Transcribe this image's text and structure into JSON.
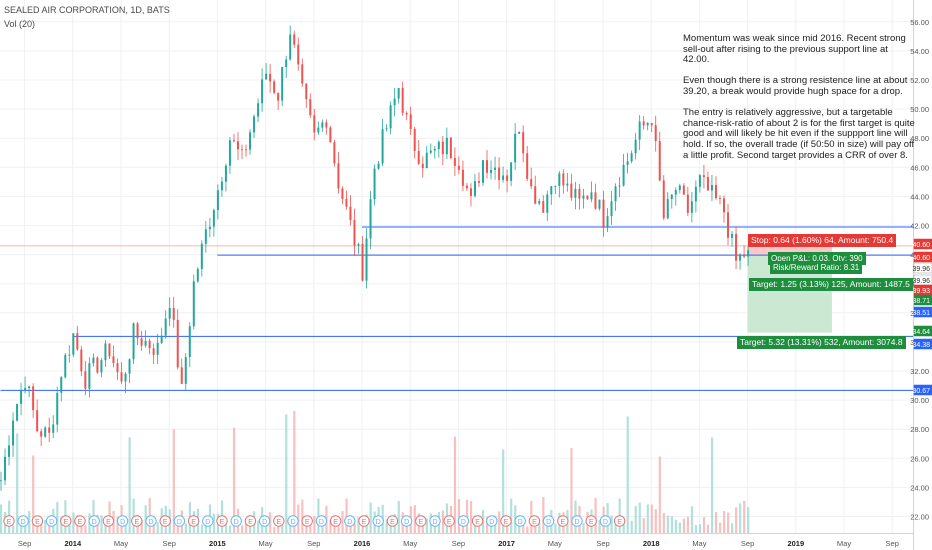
{
  "header": {
    "symbol_line": "SEALED AIR CORPORATION, 1D, BATS",
    "volume_line": "Vol (20)"
  },
  "note": {
    "paragraphs": [
      "Momentum was weak since mid 2016. Recent strong sell-out after rising to the previous support line at 42.00.",
      "Even though there is a strong resistence line at about 39.20, a break would provide hugh space for a drop.",
      "The entry is relatively aggressive, but a targetable chance-risk-ratio of about 2 is for the first target is quite good and will likely be hit even if the suppport line will hold. If so, the overall trade (if 50:50 in size) will pay off a little profit. Second target provides a CRR of over 8."
    ]
  },
  "position": {
    "stop_label": "Stop: 0.64 (1.60%) 64, Amount: 750.4",
    "pnl_label": "Open P&L: 0.03, Qty: 390",
    "rr_label": "Risk/Reward Ratio: 8.31",
    "target1_label": "Target: 1.25 (3.13%) 125, Amount: 1487.5",
    "target2_label": "Target: 5.32 (13.31%) 532, Amount: 3074.8"
  },
  "price_tags": [
    {
      "value": "40.60",
      "color": "#e53935"
    },
    {
      "value": "40.60",
      "color": "#e53935"
    },
    {
      "value": "39.96",
      "color": "#ffffff"
    },
    {
      "value": "39.96",
      "color": "#ffffff"
    },
    {
      "value": "39.93",
      "color": "#e53935"
    },
    {
      "value": "38.71",
      "color": "#1e8e3e"
    },
    {
      "value": "38.51",
      "color": "#2962ff"
    },
    {
      "value": "34.64",
      "color": "#1e8e3e"
    },
    {
      "value": "34.38",
      "color": "#2962ff"
    },
    {
      "value": "30.67",
      "color": "#2962ff"
    }
  ],
  "colors": {
    "up": "#26a69a",
    "down": "#ef5350",
    "support_line": "#2962ff",
    "stop_zone": "#f8c9c9",
    "target_zone": "#cbe9d2"
  },
  "chart_data": {
    "type": "candlestick",
    "y_axis": {
      "min": 21,
      "max": 57,
      "ticks": [
        "22.00",
        "24.00",
        "26.00",
        "28.00",
        "30.00",
        "32.00",
        "34.00",
        "36.00",
        "38.00",
        "40.00",
        "42.00",
        "44.00",
        "46.00",
        "48.00",
        "50.00",
        "52.00",
        "54.00",
        "56.00"
      ]
    },
    "x_axis": {
      "ticks": [
        "Sep",
        "2014",
        "May",
        "Sep",
        "2015",
        "May",
        "Sep",
        "2016",
        "May",
        "Sep",
        "2017",
        "May",
        "Sep",
        "2018",
        "May",
        "Sep",
        "2019",
        "May",
        "Sep"
      ]
    },
    "price_path": [
      {
        "date": "2013-07",
        "price": 24.5
      },
      {
        "date": "2013-08",
        "price": 29.0
      },
      {
        "date": "2013-09",
        "price": 31.5
      },
      {
        "date": "2013-10",
        "price": 28.0
      },
      {
        "date": "2013-11",
        "price": 27.5
      },
      {
        "date": "2013-12",
        "price": 32.0
      },
      {
        "date": "2014-01",
        "price": 34.5
      },
      {
        "date": "2014-02",
        "price": 31.5
      },
      {
        "date": "2014-04",
        "price": 33.5
      },
      {
        "date": "2014-05",
        "price": 31.0
      },
      {
        "date": "2014-06",
        "price": 34.5
      },
      {
        "date": "2014-08",
        "price": 33.5
      },
      {
        "date": "2014-09",
        "price": 37.0
      },
      {
        "date": "2014-10",
        "price": 30.5
      },
      {
        "date": "2014-11",
        "price": 38.0
      },
      {
        "date": "2014-12",
        "price": 41.5
      },
      {
        "date": "2015-01",
        "price": 44.5
      },
      {
        "date": "2015-02",
        "price": 48.0
      },
      {
        "date": "2015-03",
        "price": 46.5
      },
      {
        "date": "2015-04",
        "price": 49.5
      },
      {
        "date": "2015-05",
        "price": 52.5
      },
      {
        "date": "2015-06",
        "price": 51.0
      },
      {
        "date": "2015-07",
        "price": 55.5
      },
      {
        "date": "2015-08",
        "price": 51.0
      },
      {
        "date": "2015-09",
        "price": 48.0
      },
      {
        "date": "2015-10",
        "price": 49.5
      },
      {
        "date": "2015-11",
        "price": 45.0
      },
      {
        "date": "2016-01",
        "price": 39.0
      },
      {
        "date": "2016-02",
        "price": 46.0
      },
      {
        "date": "2016-04",
        "price": 51.5
      },
      {
        "date": "2016-05",
        "price": 48.0
      },
      {
        "date": "2016-06",
        "price": 46.5
      },
      {
        "date": "2016-08",
        "price": 47.5
      },
      {
        "date": "2016-09",
        "price": 46.5
      },
      {
        "date": "2016-10",
        "price": 43.5
      },
      {
        "date": "2016-11",
        "price": 46.5
      },
      {
        "date": "2017-01",
        "price": 45.5
      },
      {
        "date": "2017-02",
        "price": 49.0
      },
      {
        "date": "2017-03",
        "price": 44.5
      },
      {
        "date": "2017-04",
        "price": 43.5
      },
      {
        "date": "2017-05",
        "price": 45.5
      },
      {
        "date": "2017-06",
        "price": 44.5
      },
      {
        "date": "2017-07",
        "price": 43.5
      },
      {
        "date": "2017-08",
        "price": 44.5
      },
      {
        "date": "2017-09",
        "price": 42.5
      },
      {
        "date": "2017-10",
        "price": 45.0
      },
      {
        "date": "2017-11",
        "price": 46.5
      },
      {
        "date": "2017-12",
        "price": 48.5
      },
      {
        "date": "2018-01",
        "price": 49.5
      },
      {
        "date": "2018-02",
        "price": 42.5
      },
      {
        "date": "2018-03",
        "price": 44.5
      },
      {
        "date": "2018-04",
        "price": 43.0
      },
      {
        "date": "2018-05",
        "price": 45.0
      },
      {
        "date": "2018-06",
        "price": 44.0
      },
      {
        "date": "2018-07",
        "price": 43.0
      },
      {
        "date": "2018-08",
        "price": 39.5
      },
      {
        "date": "2018-09",
        "price": 40.3
      }
    ],
    "volume_scale": {
      "min": 21,
      "max": 28.5
    },
    "horizontal_lines": [
      {
        "price": 41.9,
        "start": "2016-01"
      },
      {
        "price": 39.96,
        "start": "2015-01"
      },
      {
        "price": 34.38,
        "start": "2014-01"
      },
      {
        "price": 30.67,
        "start": "2013-07"
      }
    ],
    "reference_line": {
      "price": 40.6,
      "color": "#f5b7b1"
    },
    "position": {
      "start": "2018-09",
      "end": "2019-04",
      "entry": 39.96,
      "stop": 40.6,
      "target1": 38.71,
      "target2": 34.64
    },
    "events": [
      "E",
      "D",
      "E",
      "D",
      "E",
      "E",
      "D",
      "E",
      "D",
      "E",
      "D",
      "E",
      "D",
      "E",
      "D",
      "E",
      "D",
      "E",
      "D",
      "E",
      "D",
      "E",
      "D",
      "E",
      "D",
      "E",
      "D",
      "E",
      "D",
      "E",
      "D",
      "E",
      "D",
      "E",
      "D",
      "E",
      "D",
      "E",
      "D",
      "E",
      "D",
      "E",
      "D",
      "E"
    ]
  }
}
